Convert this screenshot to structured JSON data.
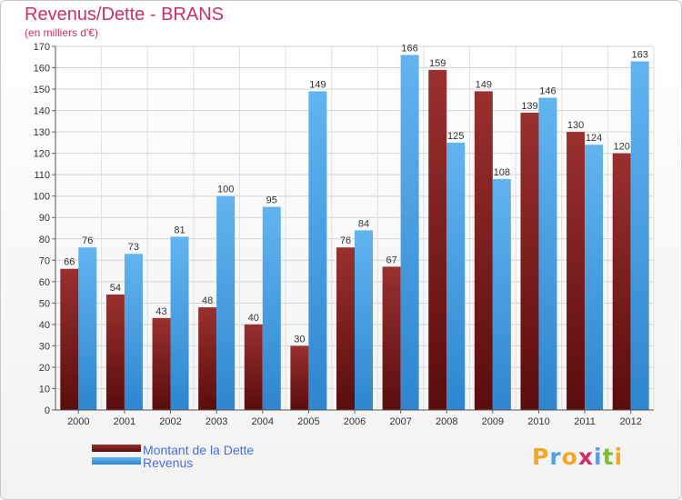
{
  "chart_data": {
    "type": "bar",
    "title": "Revenus/Dette - BRANS",
    "subtitle": "(en milliers d'€)",
    "categories": [
      "2000",
      "2001",
      "2002",
      "2003",
      "2004",
      "2005",
      "2006",
      "2007",
      "2008",
      "2009",
      "2010",
      "2011",
      "2012"
    ],
    "series": [
      {
        "name": "Montant de la Dette",
        "values": [
          66,
          54,
          43,
          48,
          40,
          30,
          76,
          67,
          159,
          149,
          139,
          130,
          120
        ],
        "color": "#7a1a1a"
      },
      {
        "name": "Revenus",
        "values": [
          76,
          73,
          81,
          100,
          95,
          149,
          84,
          166,
          125,
          108,
          146,
          124,
          163
        ],
        "color": "#4ea3e6"
      }
    ],
    "ylim": [
      0,
      170
    ],
    "ytick_step": 10,
    "grid": true,
    "legend": "bottom-left"
  },
  "logo": {
    "letters": [
      "P",
      "r",
      "o",
      "x",
      "i",
      "t",
      "i"
    ],
    "colors": [
      "#f5a623",
      "#4ea3e6",
      "#f5a623",
      "#d12d6b",
      "#4ea3e6",
      "#7bbf2a",
      "#f5a623"
    ]
  }
}
